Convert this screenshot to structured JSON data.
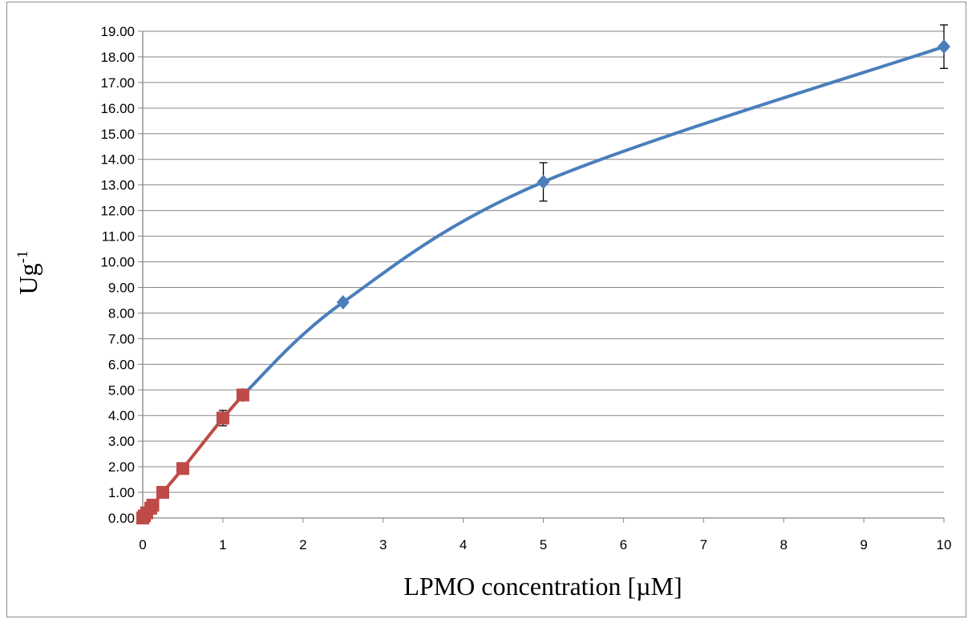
{
  "chart_data": {
    "type": "line",
    "title": "",
    "xlabel": "LPMO concentration [µM]",
    "ylabel": {
      "base": "Ug",
      "superscript": "-1"
    },
    "xlim": [
      0,
      10
    ],
    "ylim": [
      0,
      19
    ],
    "x_ticks": [
      "0",
      "1",
      "2",
      "3",
      "4",
      "5",
      "6",
      "7",
      "8",
      "9",
      "10"
    ],
    "y_ticks": [
      "0.00",
      "1.00",
      "2.00",
      "3.00",
      "4.00",
      "5.00",
      "6.00",
      "7.00",
      "8.00",
      "9.00",
      "10.00",
      "11.00",
      "12.00",
      "13.00",
      "14.00",
      "15.00",
      "16.00",
      "17.00",
      "18.00",
      "19.00"
    ],
    "grid": "horizontal",
    "legend": "none",
    "series": [
      {
        "color": "#4a7ebb",
        "marker": "diamond",
        "smooth": true,
        "points": [
          {
            "x": 1.25,
            "y": 4.8
          },
          {
            "x": 2.5,
            "y": 8.42
          },
          {
            "x": 5,
            "y": 13.12,
            "err": 0.75
          },
          {
            "x": 10,
            "y": 18.4,
            "err": 0.85
          }
        ]
      },
      {
        "color": "#be4b48",
        "marker": "square",
        "smooth": false,
        "points": [
          {
            "x": 0,
            "y": 0
          },
          {
            "x": 0.02,
            "y": 0.08
          },
          {
            "x": 0.05,
            "y": 0.2
          },
          {
            "x": 0.1,
            "y": 0.38
          },
          {
            "x": 0.125,
            "y": 0.5
          },
          {
            "x": 0.25,
            "y": 1.0
          },
          {
            "x": 0.5,
            "y": 1.93
          },
          {
            "x": 1,
            "y": 3.9,
            "err": 0.3
          },
          {
            "x": 1.25,
            "y": 4.8
          }
        ]
      }
    ]
  }
}
